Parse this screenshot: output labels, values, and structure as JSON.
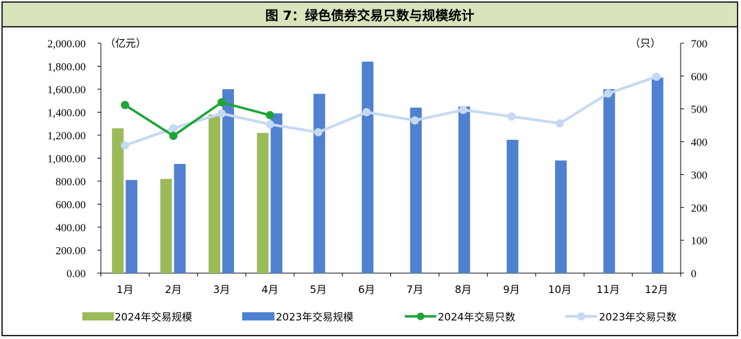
{
  "chart_data": {
    "type": "bar+line",
    "title": "图 7：绿色债券交易只数与规模统计",
    "y_left_unit": "（亿元）",
    "y_right_unit": "（只）",
    "y_left_range": [
      0,
      2000
    ],
    "y_right_range": [
      0,
      700
    ],
    "y_left_ticks": [
      "0.00",
      "200.00",
      "400.00",
      "600.00",
      "800.00",
      "1,000.00",
      "1,200.00",
      "1,400.00",
      "1,600.00",
      "1,800.00",
      "2,000.00"
    ],
    "y_right_ticks": [
      "0",
      "100",
      "200",
      "300",
      "400",
      "500",
      "600",
      "700"
    ],
    "categories": [
      "1月",
      "2月",
      "3月",
      "4月",
      "5月",
      "6月",
      "7月",
      "8月",
      "9月",
      "10月",
      "11月",
      "12月"
    ],
    "series": [
      {
        "name": "2024年交易规模",
        "type": "bar",
        "axis": "left",
        "color": "#9bbb59",
        "values": [
          1260,
          820,
          1380,
          1220,
          null,
          null,
          null,
          null,
          null,
          null,
          null,
          null
        ]
      },
      {
        "name": "2023年交易规模",
        "type": "bar",
        "axis": "left",
        "color": "#4f81d0",
        "values": [
          810,
          950,
          1600,
          1390,
          1560,
          1840,
          1440,
          1450,
          1160,
          980,
          1600,
          1700
        ]
      },
      {
        "name": "2024年交易只数",
        "type": "line",
        "axis": "right",
        "color": "#1ea538",
        "values": [
          512,
          418,
          520,
          481,
          null,
          null,
          null,
          null,
          null,
          null,
          null,
          null
        ]
      },
      {
        "name": "2023年交易只数",
        "type": "line",
        "axis": "right",
        "color": "#c6d9f1",
        "values": [
          389,
          441,
          486,
          453,
          429,
          490,
          465,
          497,
          477,
          456,
          547,
          598
        ]
      }
    ]
  }
}
